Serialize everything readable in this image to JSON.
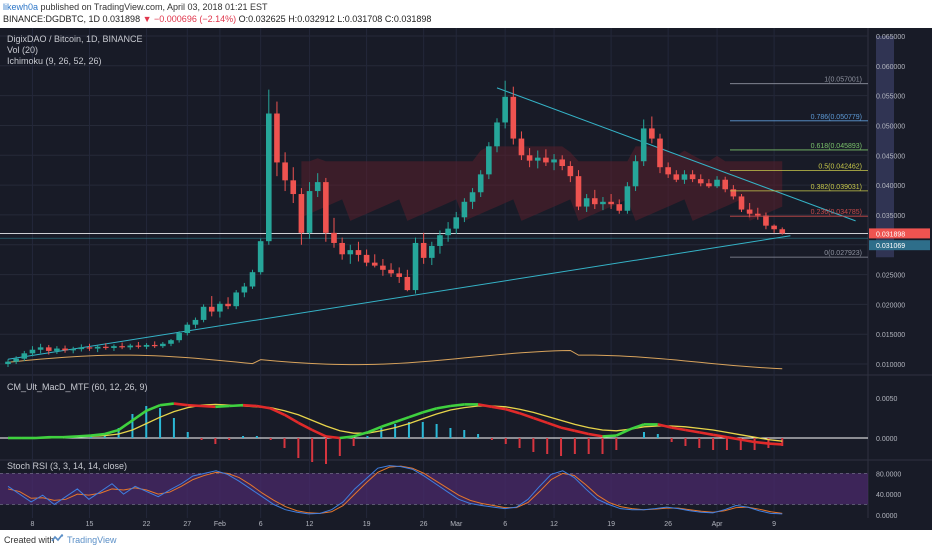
{
  "header": {
    "author": "likewh0a",
    "published": "published on TradingView.com, April 03, 2018 01:21 EST",
    "symbol": "BINANCE:DGDBTC, 1D",
    "last": "0.031898",
    "change": "−0.000696 (−2.14%)",
    "ohlc": {
      "o": "O:0.032625",
      "h": "H:0.032912",
      "l": "L:0.031708",
      "c": "C:0.031898"
    }
  },
  "indicators": {
    "main_title": "DigixDAO / Bitcoin, 1D, BINANCE",
    "vol": "Vol (20)",
    "ichimoku": "Ichimoku (9, 26, 52, 26)",
    "macd": "CM_Ult_MacD_MTF (60, 12, 26, 9)",
    "stoch": "Stoch RSI (3, 3, 14, 14, close)"
  },
  "footer": {
    "created": "Created with",
    "brand": "TradingView"
  },
  "colors": {
    "bg": "#181b27",
    "bull": "#26a69a",
    "bear": "#ef5350",
    "cloud": "#5a1f2b",
    "axis_text": "#b2b5be"
  },
  "chart_data": [
    {
      "type": "candlestick",
      "title": "DigixDAO / Bitcoin, 1D, BINANCE",
      "x_ticks": [
        "8",
        "15",
        "22",
        "27",
        "Feb",
        "6",
        "12",
        "19",
        "26",
        "Mar",
        "6",
        "12",
        "19",
        "26",
        "Apr",
        "9"
      ],
      "y_ticks": [
        "0.065000",
        "0.060000",
        "0.055000",
        "0.050000",
        "0.045000",
        "0.040000",
        "0.035000",
        "0.030000",
        "0.025000",
        "0.020000",
        "0.015000",
        "0.010000"
      ],
      "ylim": [
        0.0085,
        0.066
      ],
      "candles": [
        [
          0.01,
          0.0108,
          0.0095,
          0.0104
        ],
        [
          0.0104,
          0.0113,
          0.01,
          0.0109
        ],
        [
          0.0109,
          0.0122,
          0.0105,
          0.0118
        ],
        [
          0.0118,
          0.013,
          0.0113,
          0.0124
        ],
        [
          0.0124,
          0.0134,
          0.0118,
          0.0128
        ],
        [
          0.0128,
          0.0132,
          0.0116,
          0.0122
        ],
        [
          0.0122,
          0.013,
          0.0117,
          0.0126
        ],
        [
          0.0126,
          0.0131,
          0.0119,
          0.0123
        ],
        [
          0.0123,
          0.0129,
          0.0118,
          0.0125
        ],
        [
          0.0125,
          0.0133,
          0.0121,
          0.0128
        ],
        [
          0.0128,
          0.0134,
          0.0122,
          0.0126
        ],
        [
          0.0126,
          0.0131,
          0.012,
          0.0129
        ],
        [
          0.0129,
          0.0135,
          0.0124,
          0.0127
        ],
        [
          0.0127,
          0.0133,
          0.0122,
          0.013
        ],
        [
          0.013,
          0.0136,
          0.0125,
          0.0128
        ],
        [
          0.0128,
          0.0134,
          0.0124,
          0.0131
        ],
        [
          0.0131,
          0.0137,
          0.0126,
          0.0129
        ],
        [
          0.0129,
          0.0135,
          0.0125,
          0.0132
        ],
        [
          0.0132,
          0.0138,
          0.0127,
          0.013
        ],
        [
          0.013,
          0.0137,
          0.0127,
          0.0134
        ],
        [
          0.0134,
          0.0142,
          0.013,
          0.014
        ],
        [
          0.014,
          0.0155,
          0.0136,
          0.0152
        ],
        [
          0.0152,
          0.017,
          0.0148,
          0.0166
        ],
        [
          0.0166,
          0.0178,
          0.016,
          0.0174
        ],
        [
          0.0174,
          0.02,
          0.017,
          0.0196
        ],
        [
          0.0196,
          0.0214,
          0.018,
          0.0188
        ],
        [
          0.0188,
          0.0205,
          0.0178,
          0.0201
        ],
        [
          0.0201,
          0.0212,
          0.0192,
          0.0197
        ],
        [
          0.0197,
          0.0224,
          0.0192,
          0.022
        ],
        [
          0.022,
          0.0236,
          0.0212,
          0.023
        ],
        [
          0.023,
          0.0258,
          0.0226,
          0.0254
        ],
        [
          0.0254,
          0.031,
          0.025,
          0.0306
        ],
        [
          0.0306,
          0.056,
          0.03,
          0.052
        ],
        [
          0.052,
          0.054,
          0.0415,
          0.0438
        ],
        [
          0.0438,
          0.0455,
          0.039,
          0.0408
        ],
        [
          0.0408,
          0.043,
          0.037,
          0.0385
        ],
        [
          0.0385,
          0.0395,
          0.03,
          0.032
        ],
        [
          0.032,
          0.0405,
          0.031,
          0.039
        ],
        [
          0.039,
          0.042,
          0.038,
          0.0405
        ],
        [
          0.0405,
          0.0412,
          0.0305,
          0.032
        ],
        [
          0.032,
          0.0345,
          0.0295,
          0.0303
        ],
        [
          0.0303,
          0.0312,
          0.0275,
          0.0284
        ],
        [
          0.0284,
          0.03,
          0.0268,
          0.0291
        ],
        [
          0.0291,
          0.0305,
          0.0272,
          0.0283
        ],
        [
          0.0283,
          0.0292,
          0.0264,
          0.027
        ],
        [
          0.027,
          0.0284,
          0.0262,
          0.0265
        ],
        [
          0.0265,
          0.0276,
          0.0248,
          0.0258
        ],
        [
          0.0258,
          0.0269,
          0.0246,
          0.0252
        ],
        [
          0.0252,
          0.0262,
          0.0236,
          0.0246
        ],
        [
          0.0246,
          0.0258,
          0.0222,
          0.0224
        ],
        [
          0.0224,
          0.0312,
          0.0218,
          0.0303
        ],
        [
          0.0303,
          0.032,
          0.0268,
          0.0278
        ],
        [
          0.0278,
          0.0305,
          0.0266,
          0.0298
        ],
        [
          0.0298,
          0.0324,
          0.0285,
          0.0316
        ],
        [
          0.0316,
          0.0338,
          0.0305,
          0.0327
        ],
        [
          0.0327,
          0.0355,
          0.0318,
          0.0346
        ],
        [
          0.0346,
          0.0378,
          0.0338,
          0.0372
        ],
        [
          0.0372,
          0.0395,
          0.036,
          0.0388
        ],
        [
          0.0388,
          0.0425,
          0.038,
          0.0418
        ],
        [
          0.0418,
          0.0472,
          0.041,
          0.0465
        ],
        [
          0.0465,
          0.0512,
          0.0455,
          0.0505
        ],
        [
          0.0505,
          0.0575,
          0.0495,
          0.0548
        ],
        [
          0.0548,
          0.0565,
          0.0468,
          0.0478
        ],
        [
          0.0478,
          0.049,
          0.0442,
          0.045
        ],
        [
          0.045,
          0.0462,
          0.043,
          0.0441
        ],
        [
          0.0441,
          0.0458,
          0.0428,
          0.0446
        ],
        [
          0.0446,
          0.046,
          0.0432,
          0.0438
        ],
        [
          0.0438,
          0.0452,
          0.0425,
          0.0443
        ],
        [
          0.0443,
          0.045,
          0.0425,
          0.0432
        ],
        [
          0.0432,
          0.044,
          0.0405,
          0.0415
        ],
        [
          0.0415,
          0.0425,
          0.0358,
          0.0364
        ],
        [
          0.0364,
          0.0385,
          0.0355,
          0.0378
        ],
        [
          0.0378,
          0.0392,
          0.036,
          0.0368
        ],
        [
          0.0368,
          0.038,
          0.0358,
          0.0372
        ],
        [
          0.0372,
          0.0385,
          0.036,
          0.0368
        ],
        [
          0.0368,
          0.0376,
          0.0352,
          0.0357
        ],
        [
          0.0357,
          0.0405,
          0.0352,
          0.0398
        ],
        [
          0.0398,
          0.045,
          0.039,
          0.044
        ],
        [
          0.044,
          0.051,
          0.0432,
          0.0495
        ],
        [
          0.0495,
          0.0515,
          0.047,
          0.0478
        ],
        [
          0.0478,
          0.0486,
          0.042,
          0.043
        ],
        [
          0.043,
          0.0438,
          0.0412,
          0.0418
        ],
        [
          0.0418,
          0.0425,
          0.0405,
          0.0409
        ],
        [
          0.0409,
          0.0425,
          0.0402,
          0.0418
        ],
        [
          0.0418,
          0.0425,
          0.0405,
          0.041
        ],
        [
          0.041,
          0.0418,
          0.0398,
          0.0403
        ],
        [
          0.0403,
          0.041,
          0.0395,
          0.0398
        ],
        [
          0.0398,
          0.0415,
          0.0395,
          0.0409
        ],
        [
          0.0409,
          0.0414,
          0.0388,
          0.0393
        ],
        [
          0.0393,
          0.04,
          0.0376,
          0.0381
        ],
        [
          0.0381,
          0.0385,
          0.0355,
          0.0359
        ],
        [
          0.0359,
          0.037,
          0.0346,
          0.0352
        ],
        [
          0.0352,
          0.0362,
          0.0342,
          0.0349
        ],
        [
          0.0349,
          0.0354,
          0.0326,
          0.0332
        ],
        [
          0.0332,
          0.0334,
          0.032,
          0.0326
        ],
        [
          0.0326,
          0.0329,
          0.0317,
          0.0319
        ]
      ],
      "current_price": "0.031898",
      "current_price_label_alt": "0.031069",
      "fib_levels": [
        {
          "label": "1(0.057001)",
          "value": 0.057001
        },
        {
          "label": "0.786(0.050779)",
          "value": 0.050779
        },
        {
          "label": "0.618(0.045893)",
          "value": 0.045893
        },
        {
          "label": "0.5(0.042462)",
          "value": 0.042462
        },
        {
          "label": "0.382(0.039031)",
          "value": 0.039031
        },
        {
          "label": "0.236(0.034785)",
          "value": 0.034785
        },
        {
          "label": "0(0.027923)",
          "value": 0.027923
        }
      ]
    },
    {
      "type": "line",
      "title": "CM_Ult_MacD_MTF (60, 12, 26, 9)",
      "y_ticks": [
        "0.0050",
        "0.0000"
      ],
      "ylim": [
        -0.0025,
        0.0075
      ],
      "series": [
        {
          "name": "MACD",
          "values": [
            0,
            0,
            0,
            0.0001,
            0.0001,
            0.0002,
            0.0003,
            0.0005,
            0.001,
            0.0022,
            0.0034,
            0.0041,
            0.0043,
            0.0041,
            0.004,
            0.0039,
            0.004,
            0.0041,
            0.004,
            0.0037,
            0.0029,
            0.0019,
            0.001,
            0.0002,
            0,
            0.0002,
            0.0007,
            0.0014,
            0.002,
            0.0026,
            0.0032,
            0.0037,
            0.004,
            0.0042,
            0.0042,
            0.0039,
            0.0036,
            0.0031,
            0.0025,
            0.0019,
            0.0013,
            0.0009,
            0.0005,
            0.0002,
            0.0003,
            0.0011,
            0.0017,
            0.0017,
            0.0013,
            0.001,
            0.0007,
            0.0004,
            0.0001,
            -0.0002,
            -0.0005,
            -0.0007,
            -0.0008
          ]
        },
        {
          "name": "Signal",
          "values": [
            0,
            0,
            0,
            0,
            0.0001,
            0.0002,
            0.0002,
            0.0003,
            0.0005,
            0.001,
            0.0018,
            0.0026,
            0.0033,
            0.0038,
            0.0041,
            0.0042,
            0.0041,
            0.004,
            0.0039,
            0.0038,
            0.0034,
            0.0029,
            0.0022,
            0.0015,
            0.0009,
            0.0006,
            0.0006,
            0.0009,
            0.0013,
            0.0018,
            0.0024,
            0.003,
            0.0035,
            0.0038,
            0.004,
            0.004,
            0.0039,
            0.0036,
            0.0032,
            0.0027,
            0.0022,
            0.0017,
            0.0013,
            0.001,
            0.0009,
            0.0011,
            0.0014,
            0.0015,
            0.0015,
            0.0014,
            0.0012,
            0.001,
            0.0007,
            0.0004,
            0.0001,
            -0.0002,
            -0.0004
          ]
        }
      ]
    },
    {
      "type": "line",
      "title": "Stoch RSI (3, 3, 14, 14, close)",
      "y_ticks": [
        "80.0000",
        "40.0000",
        "0.0000"
      ],
      "ylim": [
        -6,
        100
      ],
      "series": [
        {
          "name": "K",
          "values": [
            55,
            40,
            25,
            38,
            20,
            35,
            50,
            30,
            45,
            60,
            40,
            55,
            45,
            35,
            48,
            60,
            75,
            80,
            85,
            78,
            65,
            50,
            35,
            20,
            10,
            5,
            2,
            3,
            10,
            25,
            50,
            70,
            90,
            95,
            93,
            88,
            75,
            60,
            45,
            30,
            22,
            18,
            15,
            12,
            15,
            30,
            55,
            78,
            85,
            72,
            50,
            30,
            20,
            12,
            10,
            10,
            12,
            15,
            12,
            8,
            5,
            4,
            10,
            18,
            15,
            8,
            3,
            2
          ]
        },
        {
          "name": "D",
          "values": [
            50,
            45,
            32,
            33,
            28,
            30,
            40,
            38,
            42,
            50,
            48,
            52,
            48,
            40,
            44,
            55,
            68,
            76,
            82,
            80,
            72,
            58,
            42,
            28,
            16,
            8,
            4,
            3,
            6,
            18,
            40,
            62,
            82,
            92,
            94,
            90,
            80,
            66,
            52,
            38,
            28,
            22,
            18,
            14,
            14,
            24,
            45,
            68,
            80,
            76,
            58,
            38,
            24,
            16,
            12,
            10,
            11,
            13,
            13,
            10,
            7,
            5,
            8,
            14,
            15,
            11,
            6,
            3
          ]
        }
      ]
    }
  ]
}
